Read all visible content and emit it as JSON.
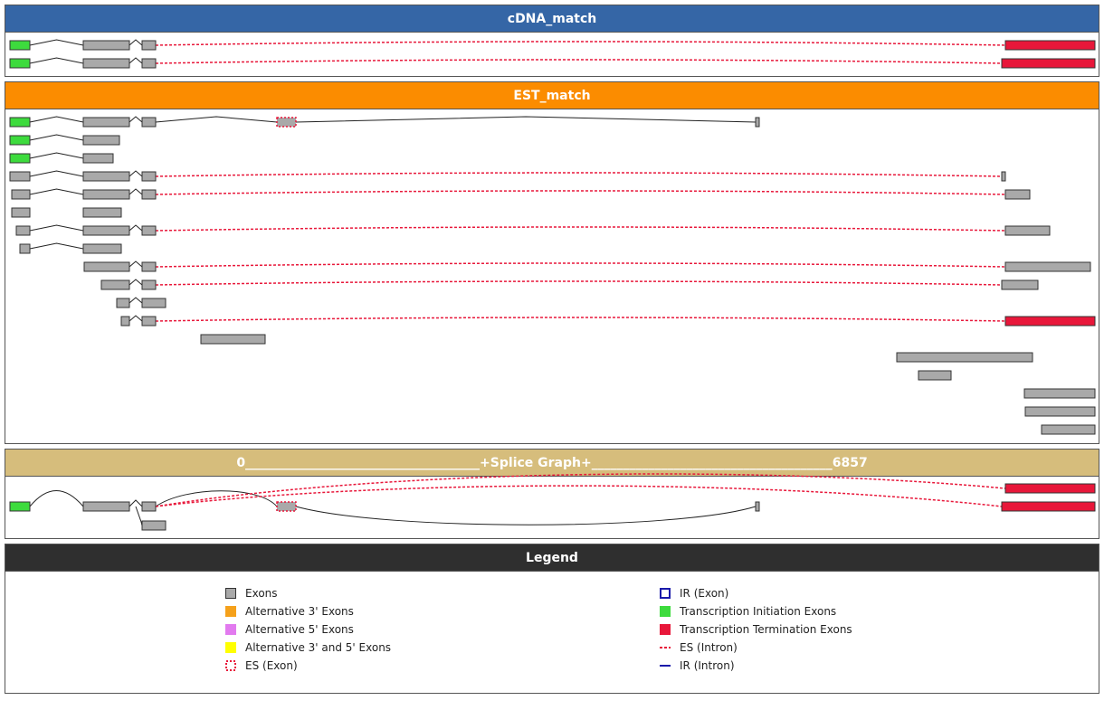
{
  "colors": {
    "exon": "#a9a9a9",
    "alt3": "#f5a11b",
    "alt5": "#e27aef",
    "alt35": "#ffff00",
    "init": "#3ddb3d",
    "term": "#e8173a",
    "es": "#e8173a",
    "ir": "#1a1aaa",
    "intron": "#222222"
  },
  "panels": {
    "cdna": {
      "title": "cDNA_match",
      "color": "#3566a6"
    },
    "est": {
      "title": "EST_match",
      "color": "#fb8c00"
    },
    "splice": {
      "title": "0_____________________________________+Splice Graph+______________________________________6857",
      "color": "#d6bd7c"
    },
    "legend": {
      "title": "Legend",
      "color": "#2f2f2f"
    }
  },
  "legend": {
    "left": [
      {
        "label": "Exons",
        "icon": "exon-swatch-icon"
      },
      {
        "label": "Alternative 3' Exons",
        "icon": "alt3-swatch-icon"
      },
      {
        "label": "Alternative 5' Exons",
        "icon": "alt5-swatch-icon"
      },
      {
        "label": "Alternative 3' and 5' Exons",
        "icon": "alt35-swatch-icon"
      },
      {
        "label": "ES (Exon)",
        "icon": "es-exon-swatch-icon"
      }
    ],
    "right": [
      {
        "label": "IR (Exon)",
        "icon": "ir-exon-swatch-icon"
      },
      {
        "label": "Transcription Initiation Exons",
        "icon": "init-swatch-icon"
      },
      {
        "label": "Transcription Termination Exons",
        "icon": "term-swatch-icon"
      },
      {
        "label": "ES (Intron)",
        "icon": "es-intron-line-icon"
      },
      {
        "label": "IR (Intron)",
        "icon": "ir-intron-line-icon"
      }
    ]
  }
}
